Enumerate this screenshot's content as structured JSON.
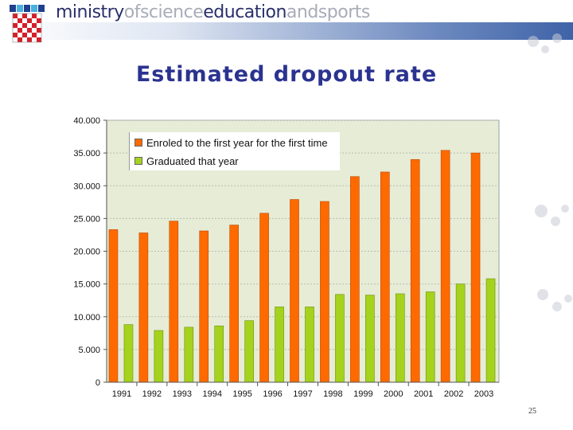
{
  "header": {
    "logo_words": [
      "ministry",
      "ofscience",
      "education",
      "andsports"
    ]
  },
  "title": "Estimated dropout rate",
  "page_number": "25",
  "colors": {
    "series1": "#ff6a00",
    "series2": "#a5d21c",
    "plot_bg": "#e6ecd6",
    "title": "#2b3390"
  },
  "chart_data": {
    "type": "bar",
    "title": "",
    "xlabel": "",
    "ylabel": "",
    "categories": [
      "1991",
      "1992",
      "1993",
      "1994",
      "1995",
      "1996",
      "1997",
      "1998",
      "1999",
      "2000",
      "2001",
      "2002",
      "2003"
    ],
    "ylim": [
      0,
      40000
    ],
    "yticks": [
      0,
      5000,
      10000,
      15000,
      20000,
      25000,
      30000,
      35000,
      40000
    ],
    "ytick_labels": [
      "0",
      "5.000",
      "10.000",
      "15.000",
      "20.000",
      "25.000",
      "30.000",
      "35.000",
      "40.000"
    ],
    "grid": true,
    "legend_position": "top-left",
    "series": [
      {
        "name": "Enroled to the first year for the first time",
        "values": [
          23300,
          22800,
          24600,
          23100,
          24000,
          25800,
          27900,
          27600,
          31400,
          32100,
          34000,
          35400,
          35000
        ]
      },
      {
        "name": "Graduated that year",
        "values": [
          8800,
          7900,
          8400,
          8600,
          9400,
          11500,
          11500,
          13400,
          13300,
          13500,
          13800,
          15000,
          15800
        ]
      }
    ]
  }
}
